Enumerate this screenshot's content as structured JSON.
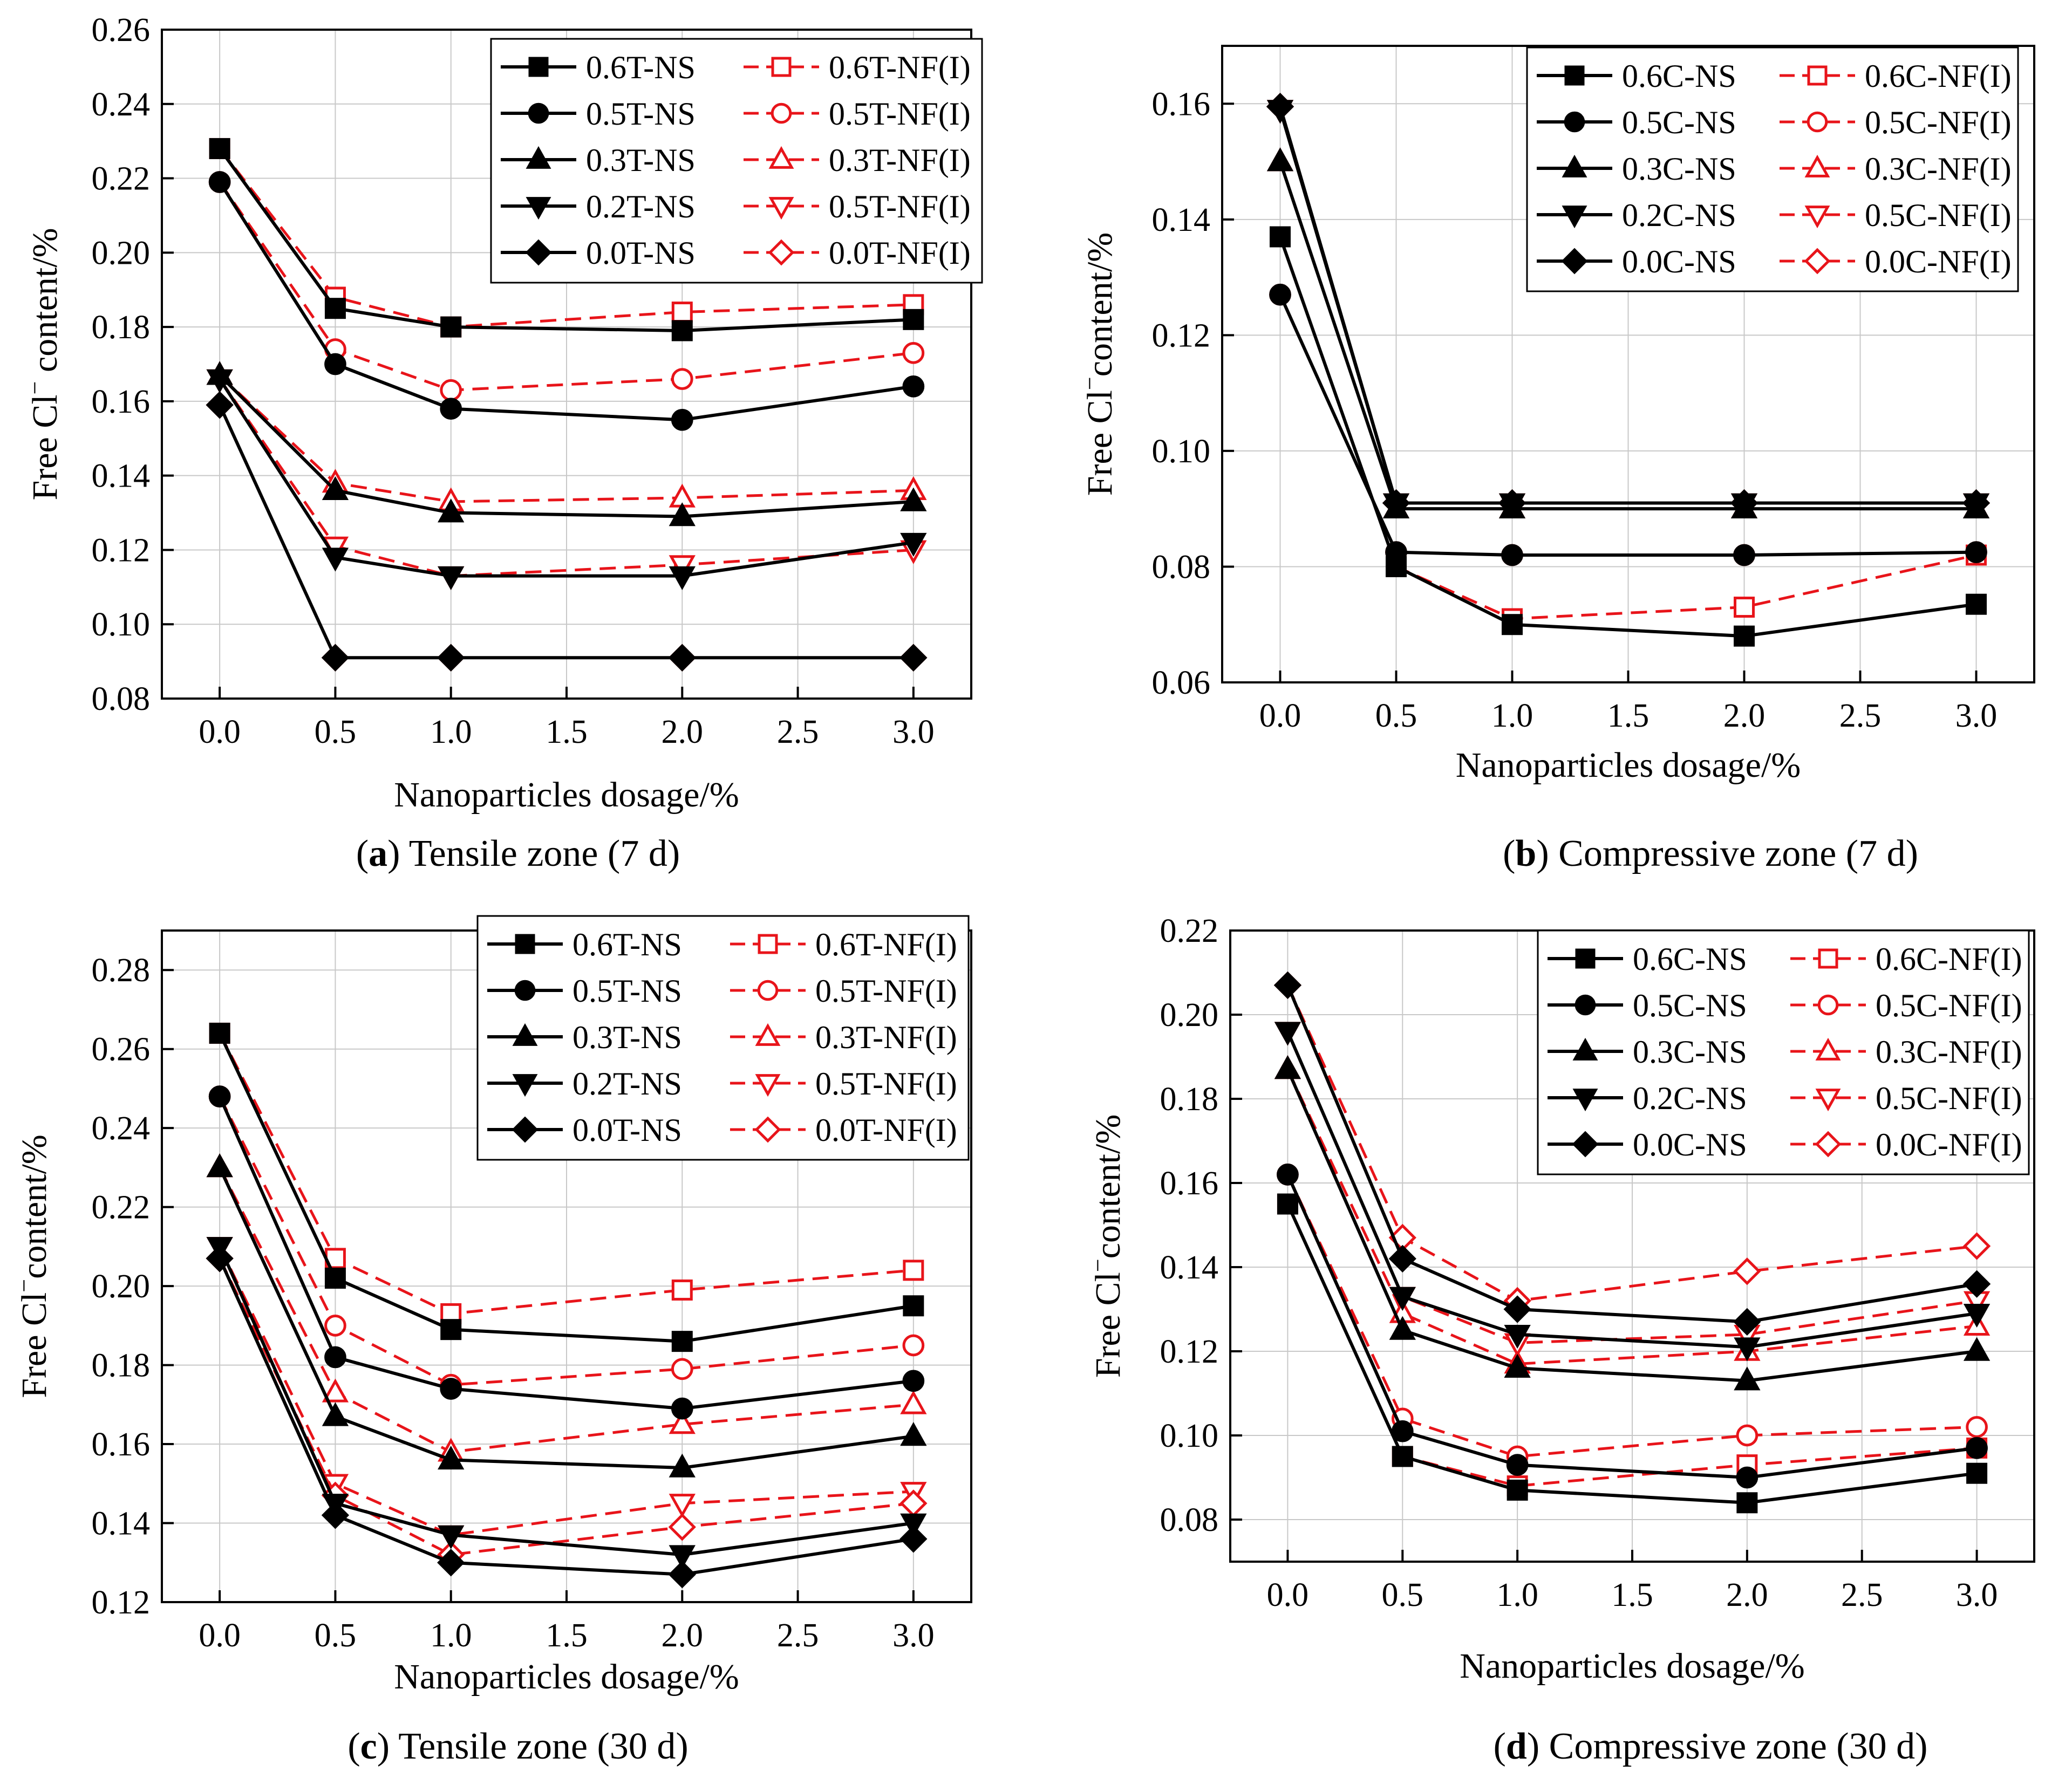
{
  "colors": {
    "ns": "#000000",
    "nf": "#e8141a",
    "grid": "#c8c8c8"
  },
  "chart_data": [
    {
      "type": "line",
      "caption_letter": "a",
      "caption_text": " Tensile zone (7 d)",
      "xlabel": "Nanoparticles dosage/%",
      "ylabel_pre": "Free Cl",
      "ylabel_sup": "−",
      "ylabel_post": " content/%",
      "xlim": [
        -0.25,
        3.25
      ],
      "xticks": [
        0.0,
        0.5,
        1.0,
        1.5,
        2.0,
        2.5,
        3.0
      ],
      "xtick_labels": [
        "0.0",
        "0.5",
        "1.0",
        "1.5",
        "2.0",
        "2.5",
        "3.0"
      ],
      "ylim": [
        0.08,
        0.26
      ],
      "yticks": [
        0.08,
        0.1,
        0.12,
        0.14,
        0.16,
        0.18,
        0.2,
        0.22,
        0.24,
        0.26
      ],
      "ytick_labels": [
        "0.08",
        "0.10",
        "0.12",
        "0.14",
        "0.16",
        "0.18",
        "0.20",
        "0.22",
        "0.24",
        "0.26"
      ],
      "x": [
        0,
        0.5,
        1,
        2,
        3
      ],
      "grid": true,
      "legend_position": "top-right",
      "series": [
        {
          "name": "0.6T-NS",
          "marker": "square",
          "style": "ns",
          "values": [
            0.228,
            0.185,
            0.18,
            0.179,
            0.182
          ]
        },
        {
          "name": "0.6T-NF(I)",
          "marker": "square",
          "style": "nf",
          "values": [
            0.228,
            0.188,
            0.18,
            0.184,
            0.186
          ]
        },
        {
          "name": "0.5T-NS",
          "marker": "circle",
          "style": "ns",
          "values": [
            0.219,
            0.17,
            0.158,
            0.155,
            0.164
          ]
        },
        {
          "name": "0.5T-NF(I)",
          "marker": "circle",
          "style": "nf",
          "values": [
            0.219,
            0.174,
            0.163,
            0.166,
            0.173
          ]
        },
        {
          "name": "0.3T-NS",
          "marker": "triangle-up",
          "style": "ns",
          "values": [
            0.167,
            0.136,
            0.13,
            0.129,
            0.133
          ]
        },
        {
          "name": "0.3T-NF(I)",
          "marker": "triangle-up",
          "style": "nf",
          "values": [
            0.167,
            0.138,
            0.133,
            0.134,
            0.136
          ]
        },
        {
          "name": "0.2T-NS",
          "marker": "triangle-down",
          "style": "ns",
          "values": [
            0.166,
            0.118,
            0.113,
            0.113,
            0.122
          ]
        },
        {
          "name": "0.5T-NF(I)",
          "marker": "triangle-down",
          "style": "nf",
          "values": [
            0.166,
            0.121,
            0.113,
            0.116,
            0.12
          ]
        },
        {
          "name": "0.0T-NS",
          "marker": "diamond",
          "style": "ns",
          "values": [
            0.159,
            0.091,
            0.091,
            0.091,
            0.091
          ]
        },
        {
          "name": "0.0T-NF(I)",
          "marker": "diamond",
          "style": "nf",
          "values": [
            0.159,
            0.091,
            0.091,
            0.091,
            0.091
          ]
        }
      ]
    },
    {
      "type": "line",
      "caption_letter": "b",
      "caption_text": " Compressive zone (7 d)",
      "xlabel": "Nanoparticles dosage/%",
      "ylabel_pre": "Free Cl",
      "ylabel_sup": "−",
      "ylabel_post": "content/%",
      "xlim": [
        -0.25,
        3.25
      ],
      "xticks": [
        0.0,
        0.5,
        1.0,
        1.5,
        2.0,
        2.5,
        3.0
      ],
      "xtick_labels": [
        "0.0",
        "0.5",
        "1.0",
        "1.5",
        "2.0",
        "2.5",
        "3.0"
      ],
      "ylim": [
        0.06,
        0.17
      ],
      "yticks": [
        0.06,
        0.08,
        0.1,
        0.12,
        0.14,
        0.16
      ],
      "ytick_labels": [
        "0.06",
        "0.08",
        "0.10",
        "0.12",
        "0.14",
        "0.16"
      ],
      "x": [
        0,
        0.5,
        1,
        2,
        3
      ],
      "grid": true,
      "legend_position": "top-right",
      "series": [
        {
          "name": "0.6C-NS",
          "marker": "square",
          "style": "ns",
          "values": [
            0.137,
            0.08,
            0.07,
            0.068,
            0.0735
          ]
        },
        {
          "name": "0.6C-NF(I)",
          "marker": "square",
          "style": "nf",
          "values": [
            0.137,
            0.08,
            0.071,
            0.073,
            0.082
          ]
        },
        {
          "name": "0.5C-NS",
          "marker": "circle",
          "style": "ns",
          "values": [
            0.127,
            0.0825,
            0.082,
            0.082,
            0.0825
          ]
        },
        {
          "name": "0.5C-NF(I)",
          "marker": "circle",
          "style": "nf",
          "values": [
            0.127,
            0.0825,
            0.082,
            0.082,
            0.0825
          ]
        },
        {
          "name": "0.3C-NS",
          "marker": "triangle-up",
          "style": "ns",
          "values": [
            0.15,
            0.09,
            0.09,
            0.09,
            0.09
          ]
        },
        {
          "name": "0.3C-NF(I)",
          "marker": "triangle-up",
          "style": "nf",
          "values": [
            0.15,
            0.09,
            0.09,
            0.09,
            0.09
          ]
        },
        {
          "name": "0.2C-NS",
          "marker": "triangle-down",
          "style": "ns",
          "values": [
            0.159,
            0.091,
            0.091,
            0.091,
            0.091
          ]
        },
        {
          "name": "0.5C-NF(I)",
          "marker": "triangle-down",
          "style": "nf",
          "values": [
            0.159,
            0.091,
            0.091,
            0.091,
            0.091
          ]
        },
        {
          "name": "0.0C-NS",
          "marker": "diamond",
          "style": "ns",
          "values": [
            0.1595,
            0.091,
            0.091,
            0.091,
            0.091
          ]
        },
        {
          "name": "0.0C-NF(I)",
          "marker": "diamond",
          "style": "nf",
          "values": [
            0.1595,
            0.091,
            0.091,
            0.091,
            0.091
          ]
        }
      ]
    },
    {
      "type": "line",
      "caption_letter": "c",
      "caption_text": " Tensile zone (30 d)",
      "xlabel": "Nanoparticles dosage/%",
      "ylabel_pre": "Free Cl",
      "ylabel_sup": "−",
      "ylabel_post": "content/%",
      "xlim": [
        -0.25,
        3.25
      ],
      "xticks": [
        0.0,
        0.5,
        1.0,
        1.5,
        2.0,
        2.5,
        3.0
      ],
      "xtick_labels": [
        "0.0",
        "0.5",
        "1.0",
        "1.5",
        "2.0",
        "2.5",
        "3.0"
      ],
      "ylim": [
        0.12,
        0.29
      ],
      "yticks": [
        0.12,
        0.14,
        0.16,
        0.18,
        0.2,
        0.22,
        0.24,
        0.26,
        0.28
      ],
      "ytick_labels": [
        "0.12",
        "0.14",
        "0.16",
        "0.18",
        "0.20",
        "0.22",
        "0.24",
        "0.26",
        "0.28"
      ],
      "x": [
        0,
        0.5,
        1,
        2,
        3
      ],
      "grid": true,
      "legend_position": "top-right",
      "series": [
        {
          "name": "0.6T-NS",
          "marker": "square",
          "style": "ns",
          "values": [
            0.264,
            0.202,
            0.189,
            0.186,
            0.195
          ]
        },
        {
          "name": "0.6T-NF(I)",
          "marker": "square",
          "style": "nf",
          "values": [
            0.264,
            0.207,
            0.193,
            0.199,
            0.204
          ]
        },
        {
          "name": "0.5T-NS",
          "marker": "circle",
          "style": "ns",
          "values": [
            0.248,
            0.182,
            0.174,
            0.169,
            0.176
          ]
        },
        {
          "name": "0.5T-NF(I)",
          "marker": "circle",
          "style": "nf",
          "values": [
            0.248,
            0.19,
            0.175,
            0.179,
            0.185
          ]
        },
        {
          "name": "0.3T-NS",
          "marker": "triangle-up",
          "style": "ns",
          "values": [
            0.23,
            0.167,
            0.156,
            0.154,
            0.162
          ]
        },
        {
          "name": "0.3T-NF(I)",
          "marker": "triangle-up",
          "style": "nf",
          "values": [
            0.23,
            0.173,
            0.158,
            0.165,
            0.17
          ]
        },
        {
          "name": "0.2T-NS",
          "marker": "triangle-down",
          "style": "ns",
          "values": [
            0.21,
            0.145,
            0.137,
            0.132,
            0.14
          ]
        },
        {
          "name": "0.5T-NF(I)",
          "marker": "triangle-down",
          "style": "nf",
          "values": [
            0.21,
            0.15,
            0.137,
            0.145,
            0.148
          ]
        },
        {
          "name": "0.0T-NS",
          "marker": "diamond",
          "style": "ns",
          "values": [
            0.207,
            0.142,
            0.13,
            0.127,
            0.136
          ]
        },
        {
          "name": "0.0T-NF(I)",
          "marker": "diamond",
          "style": "nf",
          "values": [
            0.207,
            0.147,
            0.132,
            0.139,
            0.145
          ]
        }
      ]
    },
    {
      "type": "line",
      "caption_letter": "d",
      "caption_text": " Compressive zone (30 d)",
      "xlabel": "Nanoparticles dosage/%",
      "ylabel_pre": "Free Cl",
      "ylabel_sup": "−",
      "ylabel_post": "content/%",
      "xlim": [
        -0.25,
        3.25
      ],
      "xticks": [
        0.0,
        0.5,
        1.0,
        1.5,
        2.0,
        2.5,
        3.0
      ],
      "xtick_labels": [
        "0.0",
        "0.5",
        "1.0",
        "1.5",
        "2.0",
        "2.5",
        "3.0"
      ],
      "ylim": [
        0.07,
        0.22
      ],
      "yticks": [
        0.08,
        0.1,
        0.12,
        0.14,
        0.16,
        0.18,
        0.2,
        0.22
      ],
      "ytick_labels": [
        "0.08",
        "0.10",
        "0.12",
        "0.14",
        "0.16",
        "0.18",
        "0.20",
        "0.22"
      ],
      "x": [
        0,
        0.5,
        1,
        2,
        3
      ],
      "grid": true,
      "legend_position": "top-right",
      "series": [
        {
          "name": "0.6C-NS",
          "marker": "square",
          "style": "ns",
          "values": [
            0.155,
            0.095,
            0.087,
            0.084,
            0.091
          ]
        },
        {
          "name": "0.6C-NF(I)",
          "marker": "square",
          "style": "nf",
          "values": [
            0.155,
            0.095,
            0.088,
            0.093,
            0.097
          ]
        },
        {
          "name": "0.5C-NS",
          "marker": "circle",
          "style": "ns",
          "values": [
            0.162,
            0.101,
            0.093,
            0.09,
            0.097
          ]
        },
        {
          "name": "0.5C-NF(I)",
          "marker": "circle",
          "style": "nf",
          "values": [
            0.162,
            0.104,
            0.095,
            0.1,
            0.102
          ]
        },
        {
          "name": "0.3C-NS",
          "marker": "triangle-up",
          "style": "ns",
          "values": [
            0.187,
            0.125,
            0.116,
            0.113,
            0.12
          ]
        },
        {
          "name": "0.3C-NF(I)",
          "marker": "triangle-up",
          "style": "nf",
          "values": [
            0.187,
            0.129,
            0.117,
            0.12,
            0.126
          ]
        },
        {
          "name": "0.2C-NS",
          "marker": "triangle-down",
          "style": "ns",
          "values": [
            0.196,
            0.133,
            0.124,
            0.121,
            0.129
          ]
        },
        {
          "name": "0.5C-NF(I)",
          "marker": "triangle-down",
          "style": "nf",
          "values": [
            0.196,
            0.133,
            0.122,
            0.124,
            0.132
          ]
        },
        {
          "name": "0.0C-NS",
          "marker": "diamond",
          "style": "ns",
          "values": [
            0.207,
            0.142,
            0.13,
            0.127,
            0.136
          ]
        },
        {
          "name": "0.0C-NF(I)",
          "marker": "diamond",
          "style": "nf",
          "values": [
            0.207,
            0.147,
            0.132,
            0.139,
            0.145
          ]
        }
      ]
    }
  ]
}
